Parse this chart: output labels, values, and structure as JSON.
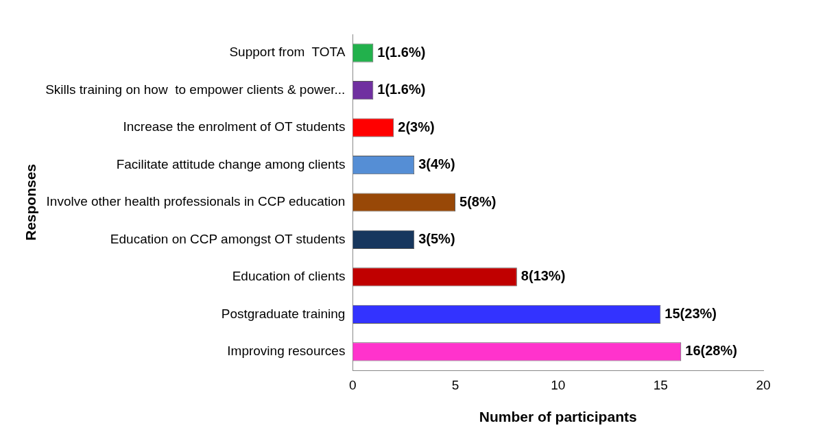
{
  "chart_data": {
    "type": "bar",
    "orientation": "horizontal",
    "xlabel": "Number of participants",
    "ylabel": "Responses",
    "categories": [
      "Support from  TOTA",
      "Skills training on how  to empower clients & power...",
      "Increase the enrolment of OT students",
      "Facilitate attitude change among clients",
      "Involve other health professionals in CCP education",
      "Education on CCP amongst OT students",
      "Education of clients",
      "Postgraduate training",
      "Improving resources"
    ],
    "values": [
      1,
      1,
      2,
      3,
      5,
      3,
      8,
      15,
      16
    ],
    "colors": [
      "#22b14c",
      "#7030a0",
      "#ff0000",
      "#558ed5",
      "#984807",
      "#17375e",
      "#c00000",
      "#3333ff",
      "#ff33cc"
    ],
    "value_labels": [
      "1(1.6%)",
      "1(1.6%)",
      "2(3%)",
      "3(4%)",
      "5(8%)",
      "3(5%)",
      "8(13%)",
      "15(23%)",
      "16(28%)"
    ],
    "xlim": [
      0,
      20
    ],
    "xticks": [
      0,
      5,
      10,
      15,
      20
    ],
    "grid": false,
    "legend": false
  }
}
